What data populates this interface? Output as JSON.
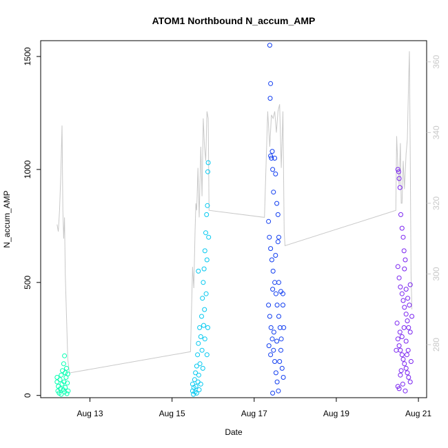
{
  "chart_data": {
    "type": "scatter",
    "title": "ATOM1 Northbound N_accum_AMP",
    "xlabel": "Date",
    "ylabel": "N_accum_AMP",
    "x_ticks": [
      "Aug 13",
      "Aug 15",
      "Aug 17",
      "Aug 19",
      "Aug 21"
    ],
    "x_tick_days": [
      13,
      15,
      17,
      19,
      21
    ],
    "xlim": [
      11.8,
      21.2
    ],
    "ylim": [
      -10,
      1570
    ],
    "y_ticks": [
      0,
      500,
      1000,
      1500
    ],
    "y2lim": [
      265,
      366
    ],
    "y2_ticks": [
      280,
      300,
      320,
      340,
      360
    ],
    "grid": false,
    "legend": "none",
    "series": [
      {
        "color": "#00ffb0",
        "points": [
          [
            12.2,
            80
          ],
          [
            12.2,
            60
          ],
          [
            12.22,
            20
          ],
          [
            12.23,
            40
          ],
          [
            12.25,
            10
          ],
          [
            12.27,
            70
          ],
          [
            12.28,
            30
          ],
          [
            12.3,
            90
          ],
          [
            12.3,
            5
          ],
          [
            12.32,
            50
          ],
          [
            12.33,
            110
          ],
          [
            12.35,
            25
          ],
          [
            12.36,
            140
          ],
          [
            12.37,
            60
          ],
          [
            12.38,
            175
          ],
          [
            12.38,
            15
          ],
          [
            12.4,
            100
          ],
          [
            12.4,
            35
          ],
          [
            12.42,
            80
          ],
          [
            12.43,
            120
          ],
          [
            12.44,
            8
          ],
          [
            12.45,
            55
          ],
          [
            12.46,
            95
          ],
          [
            12.47,
            20
          ]
        ]
      },
      {
        "color": "#00c8f0",
        "points": [
          [
            15.5,
            20
          ],
          [
            15.5,
            50
          ],
          [
            15.52,
            5
          ],
          [
            15.53,
            35
          ],
          [
            15.55,
            70
          ],
          [
            15.56,
            15
          ],
          [
            15.57,
            100
          ],
          [
            15.58,
            40
          ],
          [
            15.6,
            130
          ],
          [
            15.6,
            10
          ],
          [
            15.62,
            180
          ],
          [
            15.63,
            60
          ],
          [
            15.64,
            230
          ],
          [
            15.65,
            90
          ],
          [
            15.66,
            25
          ],
          [
            15.67,
            300
          ],
          [
            15.68,
            140
          ],
          [
            15.7,
            260
          ],
          [
            15.7,
            50
          ],
          [
            15.72,
            350
          ],
          [
            15.73,
            200
          ],
          [
            15.74,
            430
          ],
          [
            15.75,
            120
          ],
          [
            15.76,
            500
          ],
          [
            15.77,
            310
          ],
          [
            15.78,
            560
          ],
          [
            15.79,
            380
          ],
          [
            15.8,
            640
          ],
          [
            15.8,
            250
          ],
          [
            15.82,
            720
          ],
          [
            15.83,
            450
          ],
          [
            15.84,
            800
          ],
          [
            15.85,
            600
          ],
          [
            15.86,
            840
          ],
          [
            15.87,
            990
          ],
          [
            15.88,
            1030
          ],
          [
            15.87,
            300
          ],
          [
            15.89,
            700
          ],
          [
            15.64,
            550
          ],
          [
            15.85,
            180
          ]
        ]
      },
      {
        "color": "#0f3cf0",
        "points": [
          [
            17.38,
            1550
          ],
          [
            17.4,
            1380
          ],
          [
            17.39,
            1315
          ],
          [
            17.4,
            1060
          ],
          [
            17.42,
            1050
          ],
          [
            17.44,
            1080
          ],
          [
            17.45,
            1000
          ],
          [
            17.47,
            900
          ],
          [
            17.5,
            1050
          ],
          [
            17.52,
            980
          ],
          [
            17.55,
            850
          ],
          [
            17.58,
            800
          ],
          [
            17.6,
            700
          ],
          [
            17.35,
            770
          ],
          [
            17.37,
            700
          ],
          [
            17.4,
            650
          ],
          [
            17.43,
            600
          ],
          [
            17.46,
            550
          ],
          [
            17.5,
            500
          ],
          [
            17.53,
            450
          ],
          [
            17.56,
            400
          ],
          [
            17.6,
            350
          ],
          [
            17.63,
            300
          ],
          [
            17.66,
            250
          ],
          [
            17.7,
            450
          ],
          [
            17.35,
            400
          ],
          [
            17.38,
            350
          ],
          [
            17.41,
            300
          ],
          [
            17.44,
            250
          ],
          [
            17.47,
            200
          ],
          [
            17.5,
            150
          ],
          [
            17.53,
            100
          ],
          [
            17.56,
            60
          ],
          [
            17.59,
            20
          ],
          [
            17.45,
            10
          ],
          [
            17.62,
            150
          ],
          [
            17.65,
            200
          ],
          [
            17.68,
            120
          ],
          [
            17.71,
            80
          ],
          [
            17.36,
            220
          ],
          [
            17.4,
            180
          ],
          [
            17.48,
            280
          ],
          [
            17.55,
            240
          ],
          [
            17.6,
            500
          ],
          [
            17.65,
            460
          ],
          [
            17.7,
            400
          ],
          [
            17.72,
            300
          ],
          [
            17.45,
            470
          ],
          [
            17.52,
            620
          ],
          [
            17.58,
            680
          ]
        ]
      },
      {
        "color": "#7820f0",
        "points": [
          [
            20.5,
            1000
          ],
          [
            20.52,
            990
          ],
          [
            20.53,
            960
          ],
          [
            20.55,
            920
          ],
          [
            20.57,
            800
          ],
          [
            20.6,
            740
          ],
          [
            20.63,
            700
          ],
          [
            20.65,
            640
          ],
          [
            20.68,
            600
          ],
          [
            20.5,
            570
          ],
          [
            20.53,
            520
          ],
          [
            20.56,
            480
          ],
          [
            20.6,
            450
          ],
          [
            20.63,
            420
          ],
          [
            20.66,
            390
          ],
          [
            20.7,
            360
          ],
          [
            20.73,
            330
          ],
          [
            20.76,
            300
          ],
          [
            20.8,
            280
          ],
          [
            20.5,
            250
          ],
          [
            20.53,
            220
          ],
          [
            20.56,
            200
          ],
          [
            20.6,
            180
          ],
          [
            20.63,
            160
          ],
          [
            20.66,
            140
          ],
          [
            20.7,
            120
          ],
          [
            20.73,
            100
          ],
          [
            20.76,
            80
          ],
          [
            20.8,
            60
          ],
          [
            20.5,
            40
          ],
          [
            20.53,
            30
          ],
          [
            20.56,
            90
          ],
          [
            20.6,
            260
          ],
          [
            20.65,
            300
          ],
          [
            20.7,
            240
          ],
          [
            20.75,
            200
          ],
          [
            20.8,
            490
          ],
          [
            20.78,
            400
          ],
          [
            20.72,
            180
          ],
          [
            20.68,
            20
          ],
          [
            20.62,
            50
          ],
          [
            20.58,
            110
          ],
          [
            20.82,
            150
          ],
          [
            20.84,
            350
          ],
          [
            20.55,
            280
          ],
          [
            20.48,
            320
          ],
          [
            20.46,
            200
          ],
          [
            20.7,
            470
          ],
          [
            20.74,
            430
          ],
          [
            20.66,
            560
          ]
        ]
      }
    ],
    "secondary_line": {
      "color": "#c8c8c8",
      "points": [
        [
          12.2,
          314
        ],
        [
          12.23,
          312
        ],
        [
          12.26,
          318
        ],
        [
          12.29,
          328
        ],
        [
          12.32,
          342
        ],
        [
          12.34,
          318
        ],
        [
          12.36,
          310
        ],
        [
          12.38,
          316
        ],
        [
          12.4,
          300
        ],
        [
          12.42,
          292
        ],
        [
          12.44,
          284
        ],
        [
          12.46,
          276
        ],
        [
          12.5,
          272
        ],
        [
          15.45,
          278
        ],
        [
          15.5,
          302
        ],
        [
          15.53,
          296
        ],
        [
          15.56,
          312
        ],
        [
          15.58,
          320
        ],
        [
          15.6,
          318
        ],
        [
          15.63,
          330
        ],
        [
          15.66,
          316
        ],
        [
          15.7,
          336
        ],
        [
          15.73,
          322
        ],
        [
          15.76,
          344
        ],
        [
          15.79,
          336
        ],
        [
          15.82,
          332
        ],
        [
          15.85,
          346
        ],
        [
          15.88,
          344
        ],
        [
          15.9,
          318
        ],
        [
          17.25,
          316
        ],
        [
          17.33,
          346
        ],
        [
          17.38,
          336
        ],
        [
          17.42,
          345
        ],
        [
          17.46,
          344
        ],
        [
          17.5,
          346
        ],
        [
          17.54,
          340
        ],
        [
          17.58,
          346
        ],
        [
          17.62,
          348
        ],
        [
          17.66,
          330
        ],
        [
          17.7,
          346
        ],
        [
          17.73,
          312
        ],
        [
          17.75,
          308
        ],
        [
          20.45,
          318
        ],
        [
          20.47,
          339
        ],
        [
          20.5,
          330
        ],
        [
          20.53,
          325
        ],
        [
          20.56,
          337
        ],
        [
          20.58,
          320
        ],
        [
          20.6,
          320
        ],
        [
          20.63,
          332
        ],
        [
          20.66,
          324
        ],
        [
          20.7,
          334
        ],
        [
          20.73,
          338
        ],
        [
          20.76,
          354
        ],
        [
          20.78,
          363
        ],
        [
          20.8,
          334
        ],
        [
          20.82,
          300
        ],
        [
          20.84,
          290
        ]
      ]
    }
  }
}
